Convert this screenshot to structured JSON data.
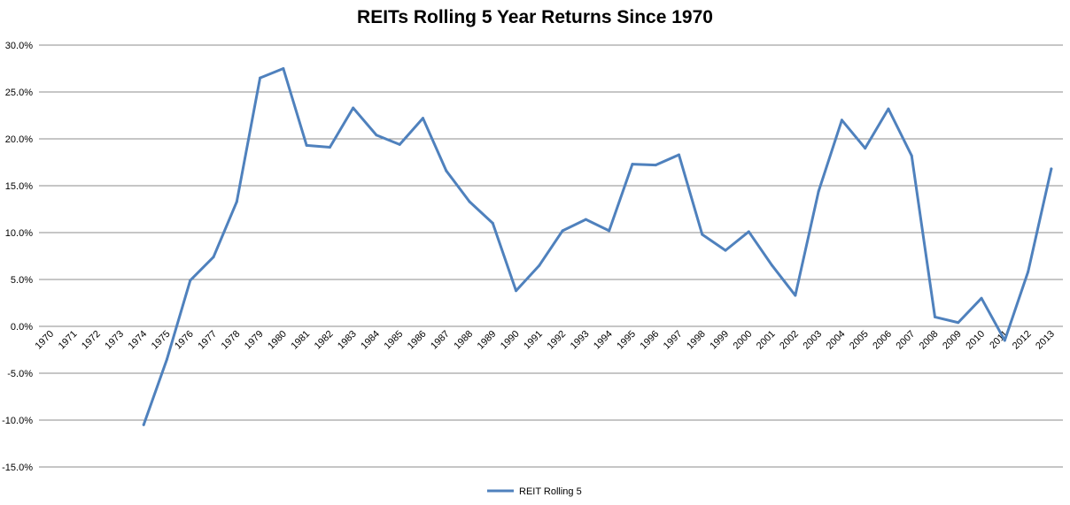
{
  "chart_data": {
    "type": "line",
    "title": "REITs Rolling 5 Year Returns Since 1970",
    "xlabel": "",
    "ylabel": "",
    "categories": [
      "1970",
      "1971",
      "1972",
      "1973",
      "1974",
      "1975",
      "1976",
      "1977",
      "1978",
      "1979",
      "1980",
      "1981",
      "1982",
      "1983",
      "1984",
      "1985",
      "1986",
      "1987",
      "1988",
      "1989",
      "1990",
      "1991",
      "1992",
      "1993",
      "1994",
      "1995",
      "1996",
      "1997",
      "1998",
      "1999",
      "2000",
      "2001",
      "2002",
      "2003",
      "2004",
      "2005",
      "2006",
      "2007",
      "2008",
      "2009",
      "2010",
      "2011",
      "2012",
      "2013"
    ],
    "series": [
      {
        "name": "REIT Rolling 5",
        "color": "#4f81bd",
        "values": [
          null,
          null,
          null,
          null,
          -10.5,
          -3.5,
          4.9,
          7.4,
          13.3,
          26.5,
          27.5,
          19.3,
          19.1,
          23.3,
          20.4,
          19.4,
          22.2,
          16.6,
          13.3,
          11.0,
          3.8,
          6.5,
          10.2,
          11.4,
          10.2,
          17.3,
          17.2,
          18.3,
          9.8,
          8.1,
          10.1,
          6.5,
          3.3,
          14.4,
          22.0,
          19.0,
          23.2,
          18.2,
          1.0,
          0.4,
          3.0,
          -1.5,
          5.8,
          16.8
        ]
      }
    ],
    "ylim": [
      -15,
      30
    ],
    "yticks": [
      "30.0%",
      "25.0%",
      "20.0%",
      "15.0%",
      "10.0%",
      "5.0%",
      "0.0%",
      "-5.0%",
      "-10.0%",
      "-15.0%"
    ],
    "grid": true,
    "legend_position": "bottom"
  }
}
